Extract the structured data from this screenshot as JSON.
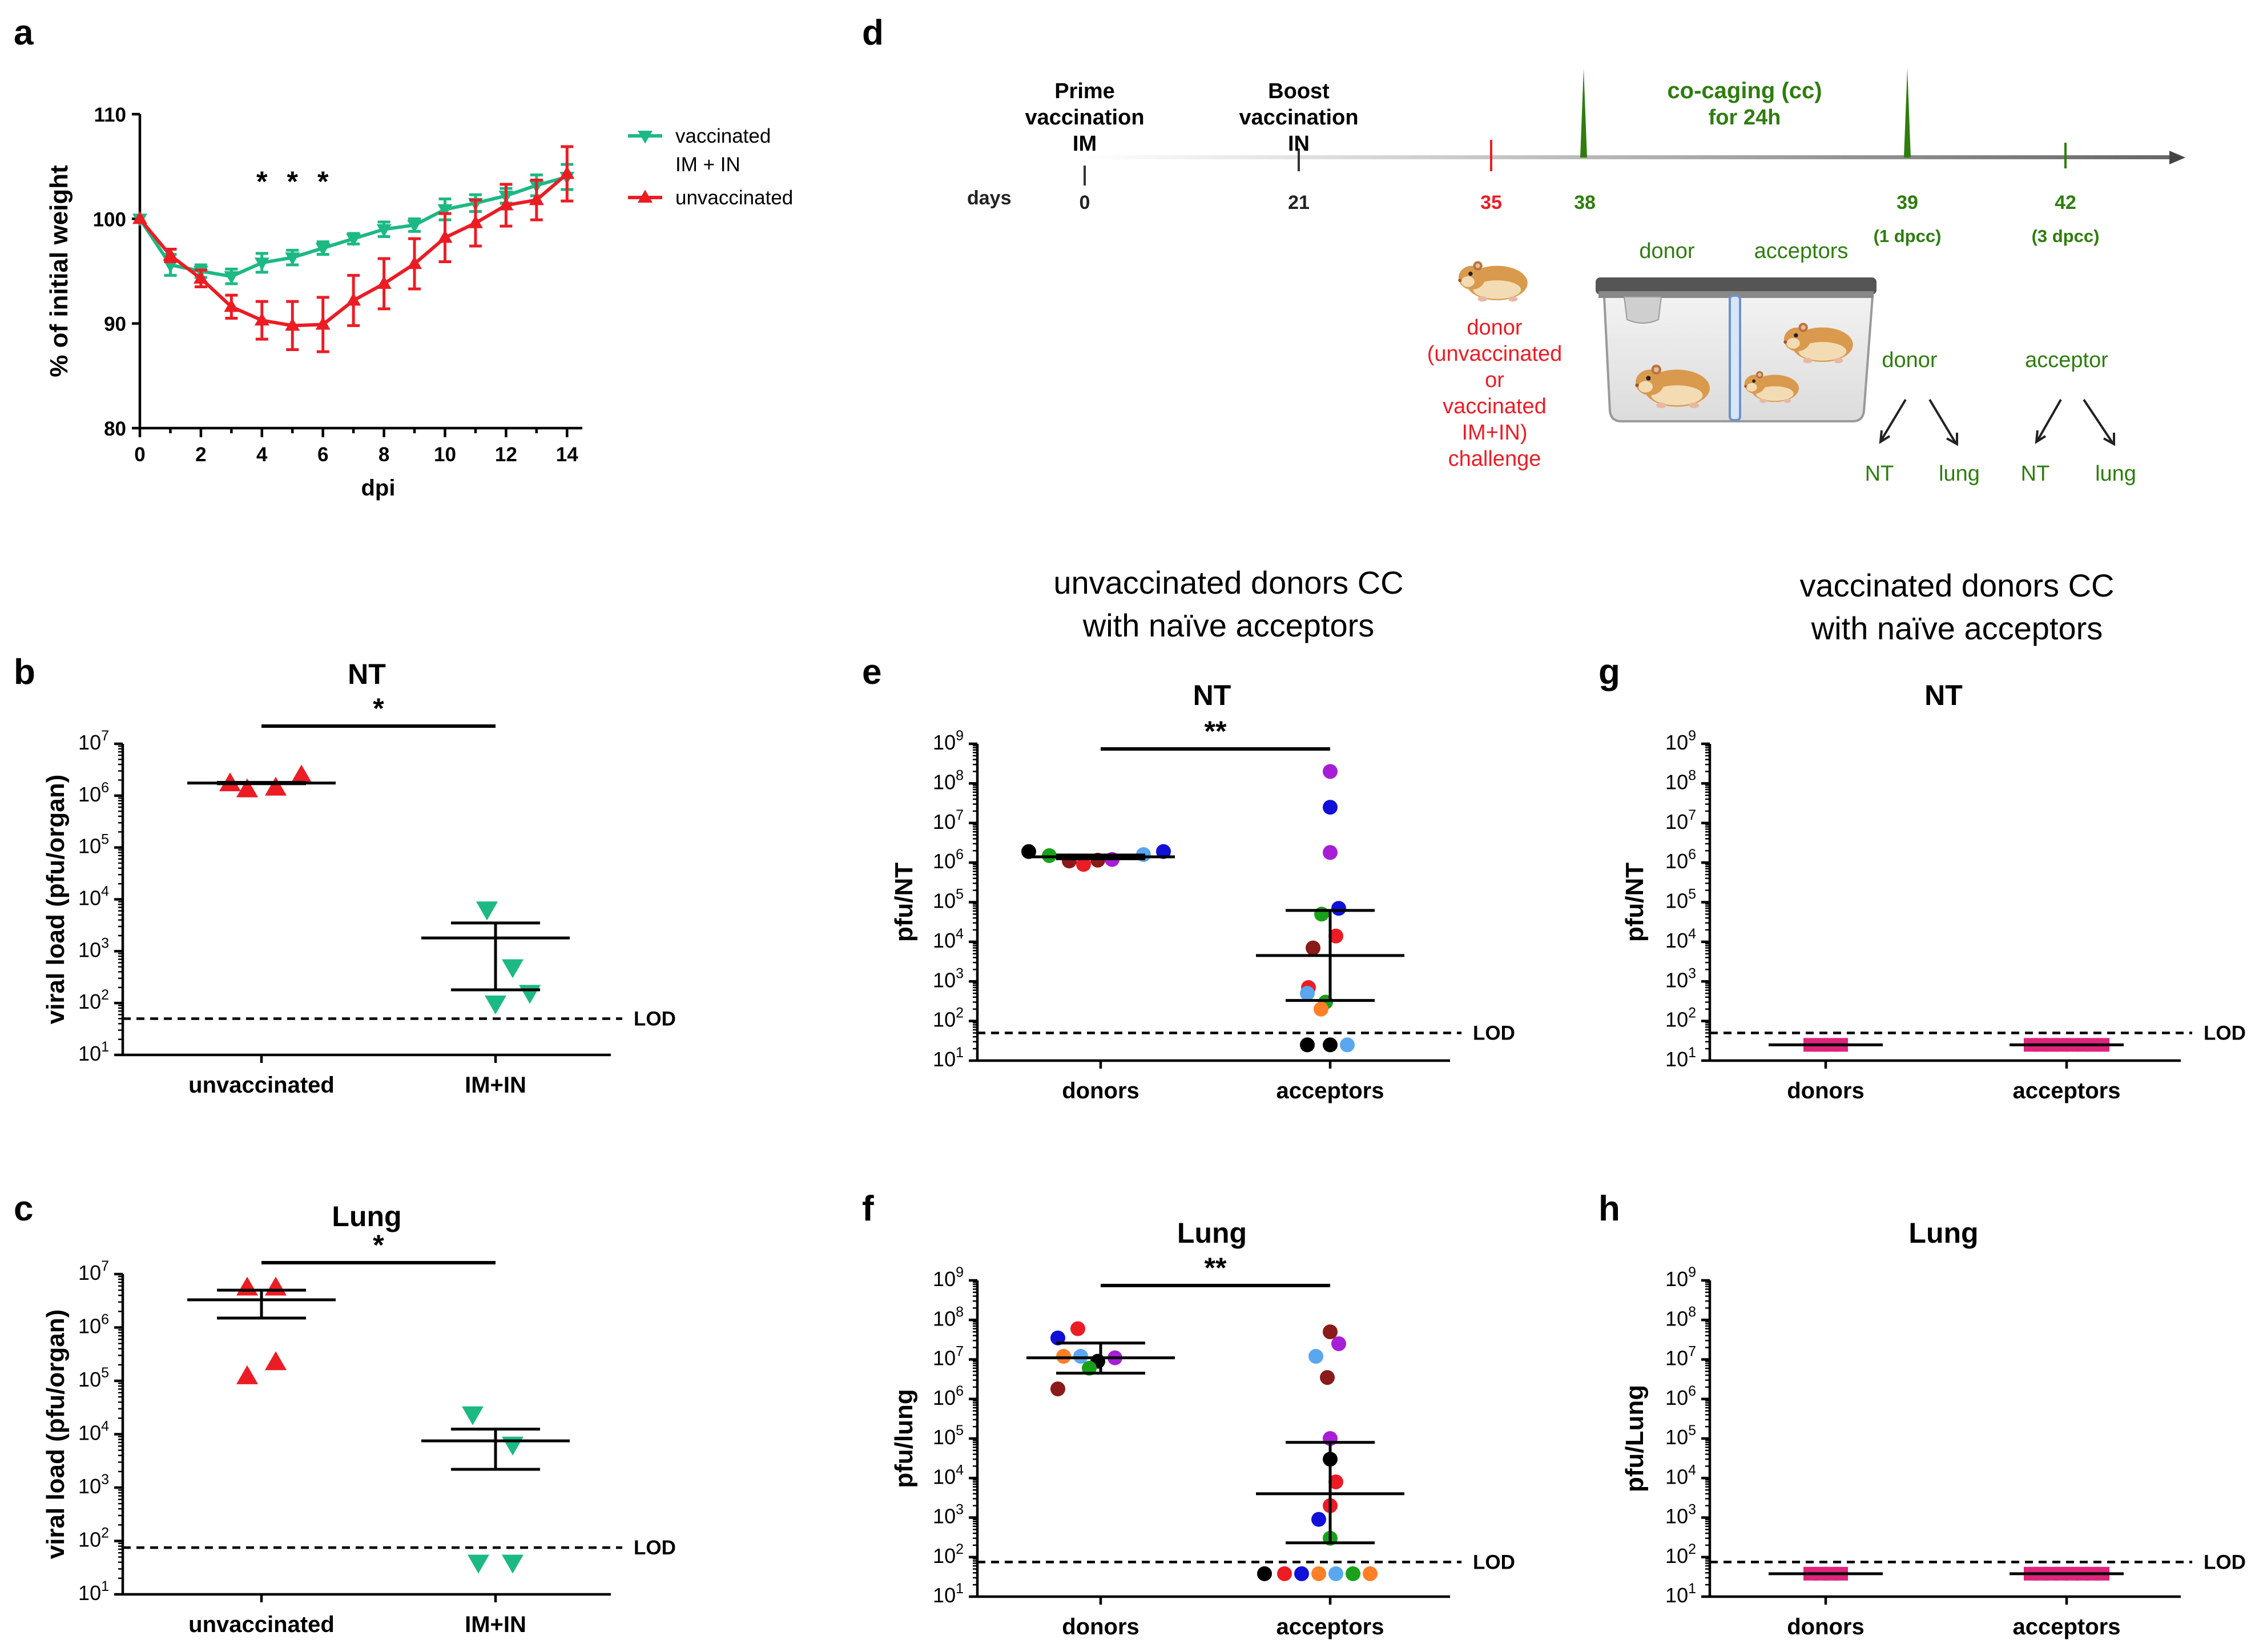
{
  "chart_data": [
    {
      "panel": "a",
      "type": "line",
      "title": "",
      "xlabel": "dpi",
      "ylabel": "% of initial weight",
      "xlim": [
        0,
        14.5
      ],
      "ylim": [
        80,
        110
      ],
      "xticks": [
        "0",
        "2",
        "4",
        "6",
        "8",
        "10",
        "12",
        "14"
      ],
      "yticks": [
        "80",
        "90",
        "100",
        "110"
      ],
      "significance": [
        "*",
        "*",
        "*"
      ],
      "significance_days": [
        4,
        5,
        6
      ],
      "series": [
        {
          "name": "vaccinated IM + IN",
          "legend": [
            "vaccinated",
            "IM + IN"
          ],
          "color": "#1cb983",
          "marker": "triangle-down",
          "x": [
            0,
            1,
            2,
            3,
            4,
            5,
            6,
            7,
            8,
            9,
            10,
            11,
            12,
            13,
            14
          ],
          "y": [
            100,
            95.6,
            95.0,
            94.5,
            95.8,
            96.3,
            97.2,
            98.1,
            99.0,
            99.4,
            100.9,
            101.5,
            102.2,
            103.2,
            104.0
          ],
          "err": [
            0,
            1.0,
            0.6,
            0.7,
            0.9,
            0.7,
            0.6,
            0.5,
            0.7,
            0.6,
            1.0,
            0.8,
            0.7,
            1.0,
            1.2
          ]
        },
        {
          "name": "unvaccinated",
          "legend": [
            "unvaccinated"
          ],
          "color": "#ec1c24",
          "marker": "triangle-up",
          "x": [
            0,
            1,
            2,
            3,
            4,
            5,
            6,
            7,
            8,
            9,
            10,
            11,
            12,
            13,
            14
          ],
          "y": [
            100,
            96.5,
            94.3,
            91.6,
            90.3,
            89.8,
            89.9,
            92.2,
            93.8,
            95.7,
            98.2,
            99.6,
            101.3,
            101.8,
            104.3
          ],
          "err": [
            0,
            0.6,
            0.8,
            1.1,
            1.8,
            2.3,
            2.6,
            2.4,
            2.4,
            2.4,
            2.3,
            2.2,
            2.0,
            1.9,
            2.6
          ]
        }
      ]
    },
    {
      "panel": "b",
      "type": "scatter",
      "title": "NT",
      "ylabel": "viral load (pfu/organ)",
      "categories": [
        "unvaccinated",
        "IM+IN"
      ],
      "ylim_log10": [
        1,
        7
      ],
      "lod": 50,
      "lod_label": "LOD",
      "significance": "*",
      "groups": [
        {
          "name": "unvaccinated",
          "color": "#ec1c24",
          "marker": "triangle-up",
          "values": [
            1700000,
            1300000,
            1400000,
            2400000
          ],
          "center": 1750000,
          "err_low": 1700000,
          "err_high": 1800000
        },
        {
          "name": "IM+IN",
          "color": "#1cb983",
          "marker": "triangle-down",
          "values": [
            6500,
            500,
            100,
            160
          ],
          "center": 1800,
          "err_low": 180,
          "err_high": 3500
        }
      ]
    },
    {
      "panel": "c",
      "type": "scatter",
      "title": "Lung",
      "ylabel": "viral load (pfu/organ)",
      "categories": [
        "unvaccinated",
        "IM+IN"
      ],
      "ylim_log10": [
        1,
        7
      ],
      "lod": 75,
      "lod_label": "LOD",
      "significance": "*",
      "groups": [
        {
          "name": "unvaccinated",
          "color": "#ec1c24",
          "marker": "triangle-up",
          "values": [
            5500000,
            5500000,
            120000,
            220000
          ],
          "center": 3300000,
          "err_low": 1500000,
          "err_high": 5000000
        },
        {
          "name": "IM+IN",
          "color": "#1cb983",
          "marker": "triangle-down",
          "values": [
            24000,
            6500,
            40,
            40
          ],
          "center": 7500,
          "err_low": 2200,
          "err_high": 12500
        }
      ]
    },
    {
      "panel": "e",
      "type": "scatter",
      "title": "NT",
      "ylabel": "pfu/NT",
      "categories": [
        "donors",
        "acceptors"
      ],
      "ylim_log10": [
        1,
        9
      ],
      "lod": 50,
      "lod_label": "LOD",
      "significance": "**",
      "groups": [
        {
          "name": "donors",
          "marker": "circle",
          "center": 1400000,
          "err_low": 1250000,
          "err_high": 1550000,
          "points": [
            [
              1900000,
              "#000000"
            ],
            [
              1500000,
              "#1aa11a"
            ],
            [
              1100000,
              "#8b1a1a"
            ],
            [
              900000,
              "#ec1c24"
            ],
            [
              1150000,
              "#8b1a1a"
            ],
            [
              1200000,
              "#a61fd6"
            ],
            [
              1600000,
              "#5aa7ef"
            ],
            [
              1900000,
              "#1010d8"
            ]
          ]
        },
        {
          "name": "acceptors",
          "marker": "circle",
          "center": 4500,
          "err_low": 330,
          "err_high": 62000,
          "points": [
            [
              200000000,
              "#a61fd6"
            ],
            [
              25000000,
              "#1010d8"
            ],
            [
              1800000,
              "#a61fd6"
            ],
            [
              70000,
              "#1010d8"
            ],
            [
              50000,
              "#1aa11a"
            ],
            [
              7000,
              "#8b1a1a"
            ],
            [
              14000,
              "#ec1c24"
            ],
            [
              700,
              "#ec1c24"
            ],
            [
              500,
              "#5aa7ef"
            ],
            [
              300,
              "#1aa11a"
            ],
            [
              200,
              "#ff7f27"
            ],
            [
              25,
              "#000000"
            ],
            [
              25,
              "#000000"
            ],
            [
              25,
              "#5aa7ef"
            ]
          ]
        }
      ]
    },
    {
      "panel": "f",
      "type": "scatter",
      "title": "Lung",
      "ylabel": "pfu/lung",
      "categories": [
        "donors",
        "acceptors"
      ],
      "ylim_log10": [
        1,
        9
      ],
      "lod": 75,
      "lod_label": "LOD",
      "significance": "**",
      "groups": [
        {
          "name": "donors",
          "marker": "circle",
          "center": 11000000,
          "err_low": 4500000,
          "err_high": 26000000,
          "points": [
            [
              60000000,
              "#ec1c24"
            ],
            [
              35000000,
              "#1010d8"
            ],
            [
              12000000,
              "#ff7f27"
            ],
            [
              12000000,
              "#5aa7ef"
            ],
            [
              9000000,
              "#000000"
            ],
            [
              11000000,
              "#a61fd6"
            ],
            [
              6000000,
              "#1aa11a"
            ],
            [
              1800000,
              "#8b1a1a"
            ]
          ]
        },
        {
          "name": "acceptors",
          "marker": "circle",
          "center": 4000,
          "err_low": 230,
          "err_high": 80000,
          "points": [
            [
              50000000,
              "#8b1a1a"
            ],
            [
              25000000,
              "#a61fd6"
            ],
            [
              12000000,
              "#5aa7ef"
            ],
            [
              3500000,
              "#8b1a1a"
            ],
            [
              100000,
              "#a61fd6"
            ],
            [
              30000,
              "#000000"
            ],
            [
              8000,
              "#ec1c24"
            ],
            [
              2000,
              "#ec1c24"
            ],
            [
              900,
              "#1010d8"
            ],
            [
              300,
              "#1aa11a"
            ],
            [
              38,
              "#000000"
            ],
            [
              38,
              "#ec1c24"
            ],
            [
              38,
              "#1010d8"
            ],
            [
              38,
              "#ff7f27"
            ],
            [
              38,
              "#5aa7ef"
            ],
            [
              38,
              "#1aa11a"
            ],
            [
              38,
              "#ff7f27"
            ]
          ]
        }
      ]
    },
    {
      "panel": "g",
      "type": "scatter",
      "title": "NT",
      "ylabel": "pfu/NT",
      "categories": [
        "donors",
        "acceptors"
      ],
      "ylim_log10": [
        1,
        9
      ],
      "lod": 50,
      "lod_label": "LOD",
      "groups": [
        {
          "name": "donors",
          "marker": "square",
          "color": "#e0237d",
          "values": [
            25,
            25,
            25,
            25
          ],
          "center": 25
        },
        {
          "name": "acceptors",
          "marker": "square",
          "color": "#e0237d",
          "values": [
            25,
            25,
            25,
            25,
            25,
            25,
            25,
            25
          ],
          "center": 25
        }
      ]
    },
    {
      "panel": "h",
      "type": "scatter",
      "title": "Lung",
      "ylabel": "pfu/Lung",
      "categories": [
        "donors",
        "acceptors"
      ],
      "ylim_log10": [
        1,
        9
      ],
      "lod": 75,
      "lod_label": "LOD",
      "groups": [
        {
          "name": "donors",
          "marker": "square",
          "color": "#e0237d",
          "values": [
            38,
            38,
            38,
            38
          ],
          "center": 38
        },
        {
          "name": "acceptors",
          "marker": "square",
          "color": "#e0237d",
          "values": [
            38,
            38,
            38,
            38,
            38,
            38,
            38,
            38
          ],
          "center": 38
        }
      ]
    }
  ],
  "panel_letters": {
    "a": "a",
    "b": "b",
    "c": "c",
    "d": "d",
    "e": "e",
    "f": "f",
    "g": "g",
    "h": "h"
  },
  "headers": {
    "unvacc": [
      "unvaccinated donors CC",
      "with naïve acceptors"
    ],
    "vacc": [
      "vaccinated donors CC",
      "with naïve acceptors"
    ]
  },
  "timeline": {
    "prime": [
      "Prime",
      "vaccination",
      "IM"
    ],
    "boost": [
      "Boost",
      "vaccination",
      "IN"
    ],
    "cocaging": [
      "co-caging (cc)",
      "for 24h"
    ],
    "days_label": "days",
    "days": [
      "0",
      "21",
      "35",
      "38",
      "39",
      "42"
    ],
    "dpcc": [
      "(1 dpcc)",
      "(3 dpcc)"
    ],
    "donor_label": "donor",
    "acceptors_label": "acceptors",
    "challenge": [
      "donor",
      "(unvaccinated",
      "or",
      "vaccinated",
      "IM+IN)",
      "challenge"
    ],
    "branch_donor": "donor",
    "branch_acceptor": "acceptor",
    "leaves": [
      "NT",
      "lung",
      "NT",
      "lung"
    ],
    "colors": {
      "green": "#2e7d0e",
      "red": "#ec1c24"
    }
  }
}
